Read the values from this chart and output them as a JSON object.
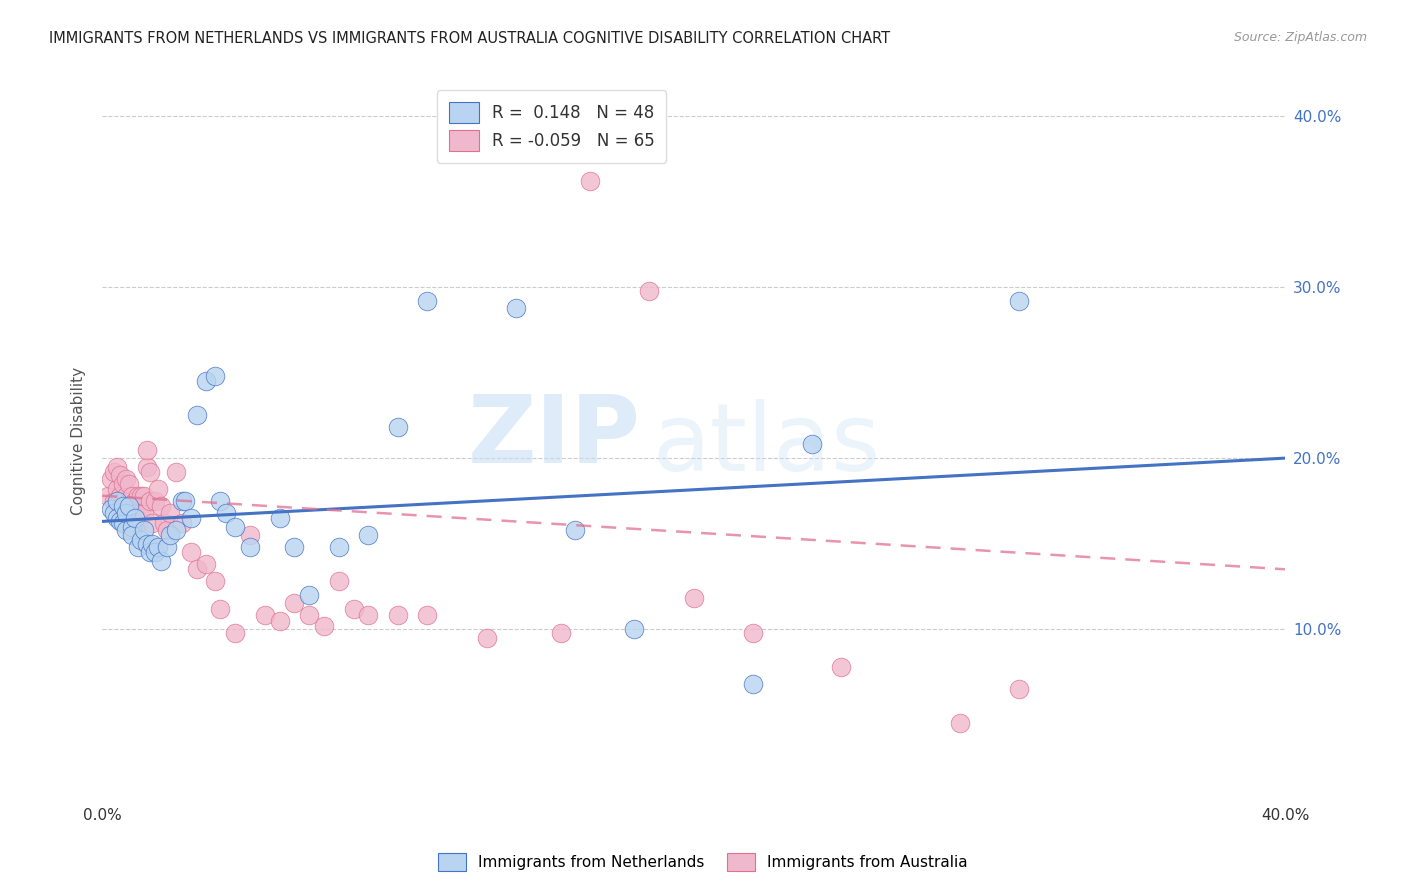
{
  "title": "IMMIGRANTS FROM NETHERLANDS VS IMMIGRANTS FROM AUSTRALIA COGNITIVE DISABILITY CORRELATION CHART",
  "source": "Source: ZipAtlas.com",
  "ylabel": "Cognitive Disability",
  "xlim": [
    0.0,
    0.4
  ],
  "ylim": [
    0.0,
    0.42
  ],
  "yticks": [
    0.1,
    0.2,
    0.3,
    0.4
  ],
  "ytick_labels": [
    "10.0%",
    "20.0%",
    "30.0%",
    "40.0%"
  ],
  "xticks": [
    0.0,
    0.1,
    0.2,
    0.3,
    0.4
  ],
  "xtick_labels": [
    "0.0%",
    "",
    "",
    "",
    "40.0%"
  ],
  "r_netherlands": 0.148,
  "n_netherlands": 48,
  "r_australia": -0.059,
  "n_australia": 65,
  "netherlands_color": "#b8d4f0",
  "australia_color": "#f0b8cc",
  "netherlands_line_color": "#4472c4",
  "australia_line_color": "#e07090",
  "background_color": "#ffffff",
  "watermark_zip": "ZIP",
  "watermark_atlas": "atlas",
  "nl_trend_start": 0.163,
  "nl_trend_end": 0.2,
  "au_trend_start": 0.178,
  "au_trend_end": 0.135,
  "netherlands_x": [
    0.003,
    0.004,
    0.005,
    0.005,
    0.006,
    0.007,
    0.007,
    0.008,
    0.008,
    0.009,
    0.01,
    0.01,
    0.011,
    0.012,
    0.013,
    0.014,
    0.015,
    0.016,
    0.017,
    0.018,
    0.019,
    0.02,
    0.022,
    0.023,
    0.025,
    0.027,
    0.028,
    0.03,
    0.032,
    0.035,
    0.038,
    0.04,
    0.042,
    0.045,
    0.05,
    0.06,
    0.065,
    0.07,
    0.08,
    0.09,
    0.1,
    0.11,
    0.14,
    0.16,
    0.18,
    0.22,
    0.24,
    0.31
  ],
  "netherlands_y": [
    0.17,
    0.168,
    0.175,
    0.165,
    0.163,
    0.162,
    0.172,
    0.158,
    0.168,
    0.172,
    0.16,
    0.155,
    0.165,
    0.148,
    0.152,
    0.158,
    0.15,
    0.145,
    0.15,
    0.145,
    0.148,
    0.14,
    0.148,
    0.155,
    0.158,
    0.175,
    0.175,
    0.165,
    0.225,
    0.245,
    0.248,
    0.175,
    0.168,
    0.16,
    0.148,
    0.165,
    0.148,
    0.12,
    0.148,
    0.155,
    0.218,
    0.292,
    0.288,
    0.158,
    0.1,
    0.068,
    0.208,
    0.292
  ],
  "australia_x": [
    0.002,
    0.003,
    0.004,
    0.004,
    0.005,
    0.005,
    0.006,
    0.006,
    0.007,
    0.007,
    0.008,
    0.008,
    0.008,
    0.009,
    0.009,
    0.01,
    0.01,
    0.01,
    0.011,
    0.011,
    0.012,
    0.012,
    0.013,
    0.013,
    0.014,
    0.014,
    0.015,
    0.015,
    0.016,
    0.016,
    0.017,
    0.018,
    0.019,
    0.02,
    0.021,
    0.022,
    0.023,
    0.025,
    0.027,
    0.03,
    0.032,
    0.035,
    0.038,
    0.04,
    0.045,
    0.05,
    0.055,
    0.06,
    0.065,
    0.07,
    0.075,
    0.08,
    0.085,
    0.09,
    0.1,
    0.11,
    0.13,
    0.155,
    0.165,
    0.185,
    0.2,
    0.22,
    0.25,
    0.29,
    0.31
  ],
  "australia_y": [
    0.178,
    0.188,
    0.192,
    0.175,
    0.182,
    0.195,
    0.178,
    0.19,
    0.175,
    0.185,
    0.168,
    0.178,
    0.188,
    0.175,
    0.185,
    0.168,
    0.178,
    0.162,
    0.175,
    0.168,
    0.162,
    0.178,
    0.168,
    0.178,
    0.168,
    0.178,
    0.195,
    0.205,
    0.175,
    0.192,
    0.162,
    0.175,
    0.182,
    0.172,
    0.162,
    0.158,
    0.168,
    0.192,
    0.162,
    0.145,
    0.135,
    0.138,
    0.128,
    0.112,
    0.098,
    0.155,
    0.108,
    0.105,
    0.115,
    0.108,
    0.102,
    0.128,
    0.112,
    0.108,
    0.108,
    0.108,
    0.095,
    0.098,
    0.362,
    0.298,
    0.118,
    0.098,
    0.078,
    0.045,
    0.065
  ]
}
